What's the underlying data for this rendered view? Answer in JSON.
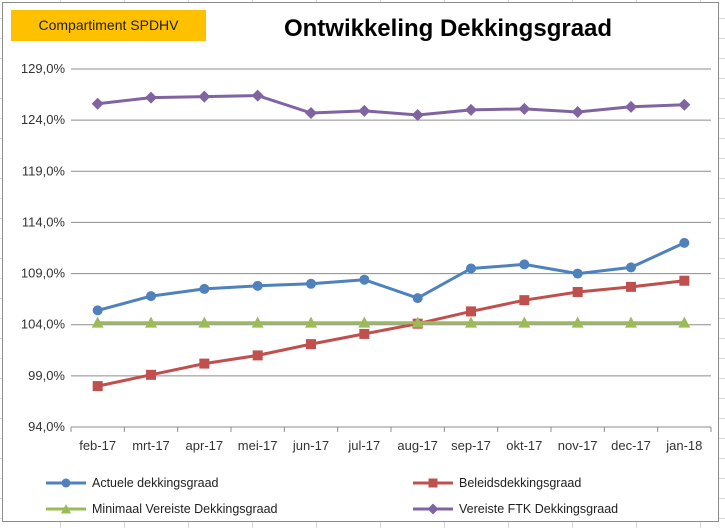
{
  "badge": {
    "label": "Compartiment SPDHV"
  },
  "chart_data": {
    "type": "line",
    "title": "Ontwikkeling Dekkingsgraad",
    "categories": [
      "feb-17",
      "mrt-17",
      "apr-17",
      "mei-17",
      "jun-17",
      "jul-17",
      "aug-17",
      "sep-17",
      "okt-17",
      "nov-17",
      "dec-17",
      "jan-18"
    ],
    "y_ticks": [
      "94,0%",
      "99,0%",
      "104,0%",
      "109,0%",
      "114,0%",
      "119,0%",
      "124,0%",
      "129,0%"
    ],
    "ylim": [
      94,
      129
    ],
    "y_step": 5,
    "grid": "horizontal",
    "legend_position": "bottom",
    "series": [
      {
        "name": "Actuele dekkingsgraad",
        "color": "#4f81bd",
        "marker": "circle",
        "values": [
          105.4,
          106.8,
          107.5,
          107.8,
          108.0,
          108.4,
          106.6,
          109.5,
          109.9,
          109.0,
          109.6,
          112.0
        ]
      },
      {
        "name": "Beleidsdekkingsgraad",
        "color": "#c0504d",
        "marker": "square",
        "values": [
          98.0,
          99.1,
          100.2,
          101.0,
          102.1,
          103.1,
          104.1,
          105.3,
          106.4,
          107.2,
          107.7,
          108.3
        ]
      },
      {
        "name": "Minimaal Vereiste Dekkingsgraad",
        "color": "#9bbb59",
        "marker": "triangle",
        "values": [
          104.2,
          104.2,
          104.2,
          104.2,
          104.2,
          104.2,
          104.2,
          104.2,
          104.2,
          104.2,
          104.2,
          104.2
        ]
      },
      {
        "name": "Vereiste FTK Dekkingsgraad",
        "color": "#8064a2",
        "marker": "diamond",
        "values": [
          125.6,
          126.2,
          126.3,
          126.4,
          124.7,
          124.9,
          124.5,
          125.0,
          125.1,
          124.8,
          125.3,
          125.5
        ]
      }
    ]
  }
}
